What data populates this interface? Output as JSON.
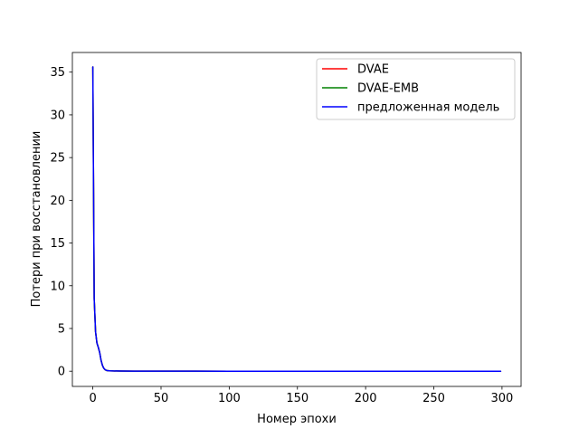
{
  "chart_data": {
    "type": "line",
    "title": "",
    "xlabel": "Номер эпохи",
    "ylabel": "Потери при восстановлении",
    "xlim": [
      -15,
      314
    ],
    "ylim": [
      -1.78,
      37.3
    ],
    "xticks": [
      0,
      50,
      100,
      150,
      200,
      250,
      300
    ],
    "yticks": [
      0,
      5,
      10,
      15,
      20,
      25,
      30,
      35
    ],
    "grid": false,
    "legend_position": "top-right",
    "series": [
      {
        "name": "DVAE",
        "color": "#ff0000",
        "x": [
          0,
          1,
          2,
          3,
          4,
          5,
          6,
          7,
          8,
          9,
          10,
          12,
          15,
          20,
          30,
          50,
          75,
          100,
          150,
          200,
          250,
          299
        ],
        "y": [
          35.6,
          8.5,
          4.6,
          3.3,
          2.8,
          2.2,
          1.3,
          0.7,
          0.35,
          0.18,
          0.09,
          0.05,
          0.03,
          0.02,
          0.01,
          0.01,
          0.01,
          0.0,
          0.0,
          0.0,
          0.0,
          0.0
        ]
      },
      {
        "name": "DVAE-EMB",
        "color": "#008000",
        "x": [
          0,
          1,
          2,
          3,
          4,
          5,
          6,
          7,
          8,
          9,
          10,
          12,
          15,
          20,
          30,
          50,
          75,
          100,
          150,
          200,
          250,
          299
        ],
        "y": [
          35.6,
          8.5,
          4.6,
          3.3,
          2.8,
          2.2,
          1.3,
          0.7,
          0.35,
          0.18,
          0.09,
          0.05,
          0.03,
          0.02,
          0.01,
          0.01,
          0.01,
          0.0,
          0.0,
          0.0,
          0.0,
          0.0
        ]
      },
      {
        "name": "предложенная модель",
        "color": "#0000ff",
        "x": [
          0,
          1,
          2,
          3,
          4,
          5,
          6,
          7,
          8,
          9,
          10,
          12,
          15,
          20,
          30,
          50,
          75,
          100,
          150,
          200,
          250,
          299
        ],
        "y": [
          35.6,
          8.5,
          4.6,
          3.3,
          2.8,
          2.2,
          1.3,
          0.7,
          0.35,
          0.18,
          0.09,
          0.05,
          0.03,
          0.02,
          0.01,
          0.01,
          0.01,
          0.0,
          0.0,
          0.0,
          0.0,
          0.0
        ]
      }
    ]
  }
}
